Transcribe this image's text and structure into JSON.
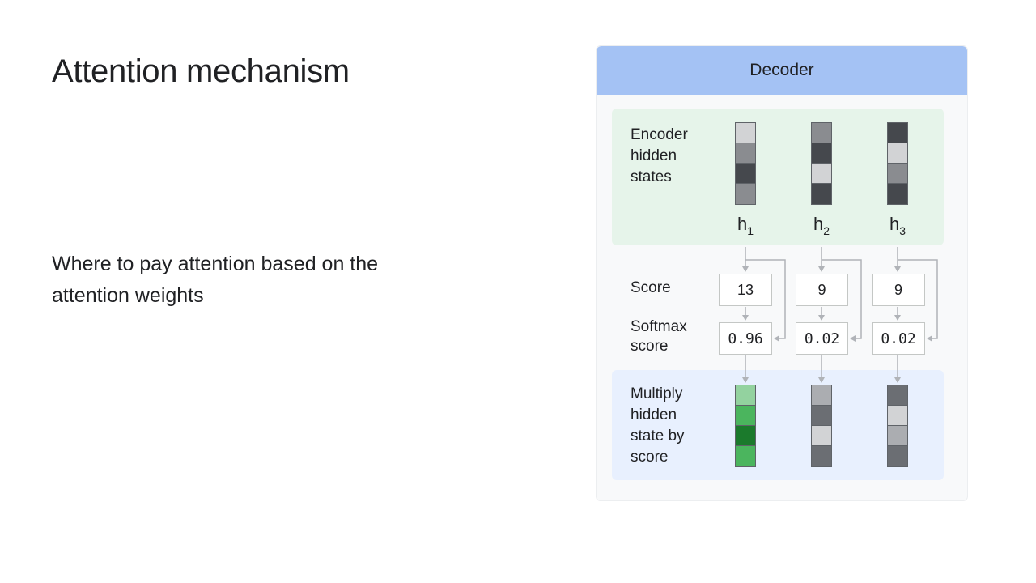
{
  "slide": {
    "title": "Attention mechanism",
    "body": "Where to pay attention based on the attention weights"
  },
  "diagram": {
    "header": "Decoder",
    "labels": {
      "encoder": "Encoder\nhidden\nstates",
      "score": "Score",
      "softmax": "Softmax\nscore",
      "multiply": "Multiply\nhidden\nstate by\nscore"
    },
    "columns": [
      {
        "h_base": "h",
        "h_sub": "1",
        "score": "13",
        "softmax": "0.96",
        "encoder_colors": [
          "#d2d3d5",
          "#8a8c90",
          "#45484d",
          "#8a8c90"
        ],
        "result_colors": [
          "#93d29f",
          "#4bb55e",
          "#1b7a2c",
          "#4bb55e"
        ]
      },
      {
        "h_base": "h",
        "h_sub": "2",
        "score": "9",
        "softmax": "0.02",
        "encoder_colors": [
          "#8a8c90",
          "#45484d",
          "#d2d3d5",
          "#45484d"
        ],
        "result_colors": [
          "#abadb1",
          "#6b6e73",
          "#d2d3d5",
          "#6b6e73"
        ]
      },
      {
        "h_base": "h",
        "h_sub": "3",
        "score": "9",
        "softmax": "0.02",
        "encoder_colors": [
          "#45484d",
          "#d2d3d5",
          "#8a8c90",
          "#45484d"
        ],
        "result_colors": [
          "#6b6e73",
          "#d2d3d5",
          "#abadb1",
          "#6b6e73"
        ]
      }
    ],
    "colors": {
      "header_bg": "#a4c2f4",
      "encoder_bg": "#e6f4ea",
      "multiply_bg": "#e8f0fe",
      "connector": "#b0b3b8"
    }
  }
}
